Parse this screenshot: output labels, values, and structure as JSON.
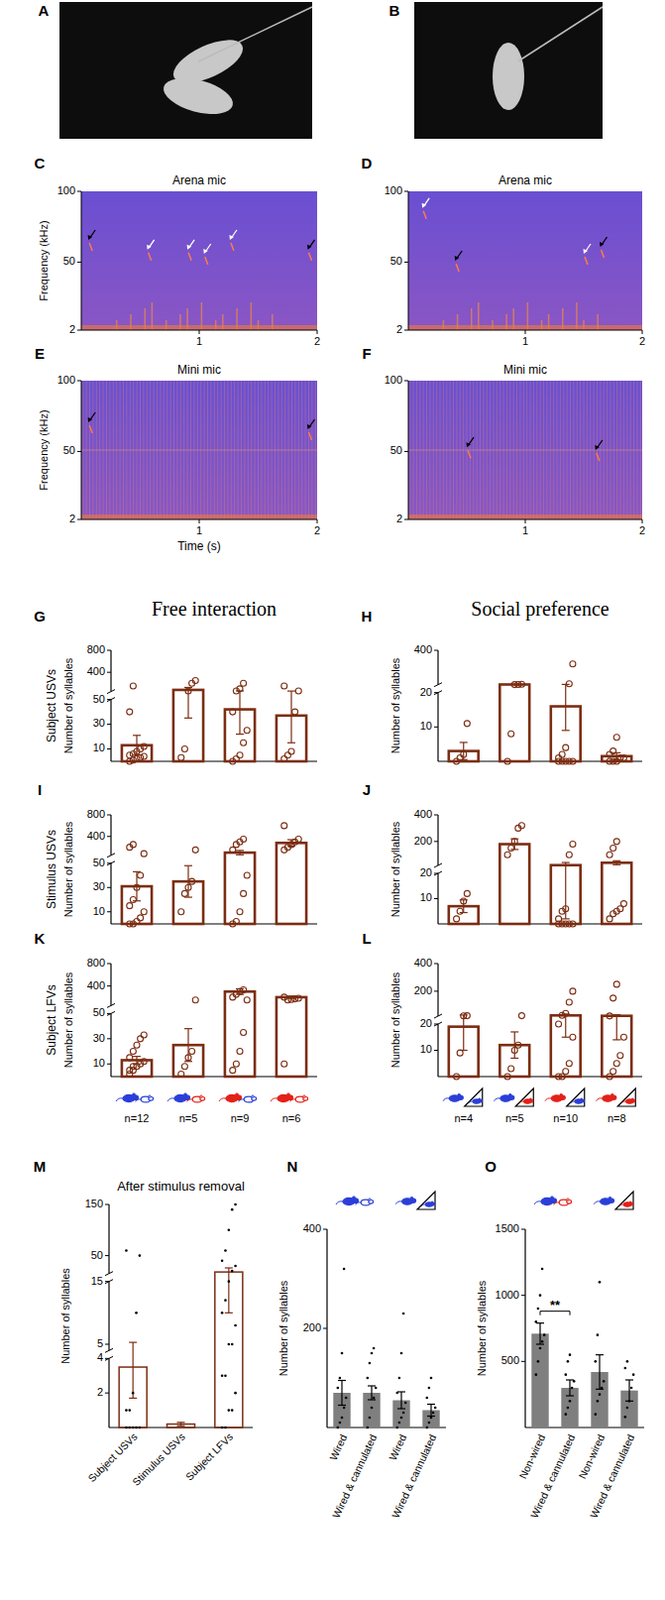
{
  "photos": [
    {
      "panel": "A"
    },
    {
      "panel": "B"
    }
  ],
  "chart_data": [
    {
      "panel": "C",
      "type": "spectrogram",
      "title": "Arena mic",
      "ylabel": "Frequency (kHz)",
      "xlim": [
        0,
        2
      ],
      "xticks": [
        1,
        2
      ],
      "ylim": [
        2,
        100
      ],
      "yticks": [
        2,
        50,
        100
      ]
    },
    {
      "panel": "D",
      "type": "spectrogram",
      "title": "Arena mic",
      "xlim": [
        0,
        2
      ],
      "xticks": [
        1,
        2
      ],
      "ylim": [
        2,
        100
      ],
      "yticks": [
        2,
        50,
        100
      ]
    },
    {
      "panel": "E",
      "type": "spectrogram",
      "title": "Mini mic",
      "ylabel": "Frequency (kHz)",
      "xlabel": "Time (s)",
      "xlim": [
        0,
        2
      ],
      "xticks": [
        1,
        2
      ],
      "ylim": [
        2,
        100
      ],
      "yticks": [
        2,
        50,
        100
      ]
    },
    {
      "panel": "F",
      "type": "spectrogram",
      "title": "Mini mic",
      "xlim": [
        0,
        2
      ],
      "xticks": [
        1,
        2
      ],
      "ylim": [
        2,
        100
      ],
      "yticks": [
        2,
        50,
        100
      ]
    },
    {
      "panel": "G",
      "type": "bar",
      "title": "Free interaction",
      "row_label": "Subject USVs",
      "ylabel": "Number of syllables",
      "color": "#7b2d12",
      "categories": [
        null,
        null,
        null,
        null
      ],
      "values": [
        13,
        80,
        42,
        37
      ],
      "errors": [
        8,
        45,
        20,
        22
      ],
      "points": [
        [
          0,
          1,
          2,
          3,
          4,
          5,
          6,
          8,
          10,
          12,
          40,
          150
        ],
        [
          3,
          10,
          60,
          200,
          250
        ],
        [
          0,
          2,
          5,
          15,
          25,
          40,
          60,
          100,
          200
        ],
        [
          2,
          5,
          8,
          40,
          60,
          150
        ]
      ],
      "ylim": [
        0,
        800
      ],
      "yticks": [
        [
          10,
          30,
          50
        ],
        [
          400,
          800
        ]
      ]
    },
    {
      "panel": "H",
      "type": "bar",
      "title": "Social preference",
      "ylabel": "Number of syllables",
      "color": "#7b2d12",
      "categories": [
        null,
        null,
        null,
        null
      ],
      "values": [
        3,
        22,
        16,
        1.5
      ],
      "errors": [
        2.5,
        1,
        7,
        1
      ],
      "points": [
        [
          0,
          1,
          2,
          11
        ],
        [
          0,
          8,
          21,
          22,
          24
        ],
        [
          0,
          0,
          0,
          0,
          0,
          1,
          2,
          4,
          30,
          250
        ],
        [
          0,
          0,
          0,
          1,
          1,
          2,
          3,
          7
        ]
      ],
      "ylim": [
        0,
        400
      ],
      "yticks": [
        [
          10,
          20
        ],
        [
          400
        ]
      ]
    },
    {
      "panel": "I",
      "type": "bar",
      "row_label": "Stimulus USVs",
      "ylabel": "Number of syllables",
      "color": "#7b2d12",
      "categories": [
        null,
        null,
        null,
        null
      ],
      "values": [
        31,
        35,
        100,
        280
      ],
      "errors": [
        12,
        13,
        40,
        60
      ],
      "points": [
        [
          0,
          0,
          2,
          5,
          10,
          15,
          20,
          30,
          40,
          80,
          200,
          250
        ],
        [
          10,
          25,
          30,
          35,
          150
        ],
        [
          0,
          2,
          10,
          25,
          40,
          150,
          250,
          300,
          350
        ],
        [
          150,
          200,
          250,
          300,
          350,
          600
        ]
      ],
      "ylim": [
        0,
        800
      ],
      "yticks": [
        [
          10,
          30,
          50
        ],
        [
          400,
          800
        ]
      ]
    },
    {
      "panel": "J",
      "type": "bar",
      "ylabel": "Number of syllables",
      "color": "#7b2d12",
      "categories": [
        null,
        null,
        null,
        null
      ],
      "values": [
        7,
        180,
        22,
        40
      ],
      "errors": [
        2.5,
        40,
        20,
        15
      ],
      "points": [
        [
          2,
          5,
          9,
          12
        ],
        [
          100,
          150,
          200,
          300,
          320
        ],
        [
          0,
          0,
          0,
          0,
          0,
          2,
          5,
          6,
          100,
          180
        ],
        [
          2,
          4,
          5,
          6,
          8,
          100,
          150,
          200
        ]
      ],
      "ylim": [
        0,
        400
      ],
      "yticks": [
        [
          10,
          20
        ],
        [
          200,
          400
        ]
      ]
    },
    {
      "panel": "K",
      "type": "bar",
      "row_label": "Subject LFVs",
      "ylabel": "Number of syllables",
      "color": "#7b2d12",
      "categories": [
        "n=12",
        "n=5",
        "n=9",
        "n=6"
      ],
      "values": [
        13,
        25,
        300,
        200
      ],
      "errors": [
        3,
        13,
        50,
        20
      ],
      "points": [
        [
          2,
          5,
          8,
          10,
          12,
          15,
          20,
          25,
          30,
          33,
          5,
          8
        ],
        [
          2,
          8,
          15,
          20,
          150
        ],
        [
          5,
          10,
          20,
          35,
          150,
          200,
          250,
          300,
          330
        ],
        [
          10,
          150,
          160,
          170,
          180,
          200
        ]
      ],
      "ylim": [
        0,
        800
      ],
      "yticks": [
        [
          10,
          30,
          50
        ],
        [
          400,
          800
        ]
      ]
    },
    {
      "panel": "L",
      "type": "bar",
      "ylabel": "Number of syllables",
      "color": "#7b2d12",
      "categories": [
        "n=4",
        "n=5",
        "n=10",
        "n=8"
      ],
      "values": [
        19,
        12,
        25,
        22
      ],
      "errors": [
        9,
        5,
        10,
        8
      ],
      "points": [
        [
          0,
          9,
          22,
          23
        ],
        [
          0,
          3,
          10,
          12,
          23
        ],
        [
          0,
          0,
          2,
          5,
          15,
          20,
          25,
          40,
          120,
          200
        ],
        [
          0,
          2,
          5,
          8,
          15,
          21,
          150,
          250
        ]
      ],
      "ylim": [
        0,
        400
      ],
      "yticks": [
        [
          10,
          20
        ],
        [
          200,
          400
        ]
      ]
    },
    {
      "panel": "M",
      "type": "bar",
      "title": "After stimulus removal",
      "ylabel": "Number of syllables",
      "color": "#7b2d12",
      "categories": [
        "Subject USVs",
        "Stimulus USVs",
        "Subject LFVs"
      ],
      "values": [
        3.5,
        0.2,
        18
      ],
      "errors": [
        1.8,
        0.1,
        8
      ],
      "points": [
        [
          0,
          0,
          0,
          0,
          0,
          1,
          1,
          2,
          10,
          50,
          60
        ],
        [],
        [
          0,
          0,
          1,
          1,
          2,
          3,
          3,
          5,
          5,
          8,
          10,
          12,
          15,
          20,
          30,
          40,
          60,
          100,
          140,
          150
        ]
      ],
      "ylim": [
        0,
        150
      ],
      "yticks": [
        [
          2,
          4
        ],
        [
          5,
          15
        ],
        [
          50,
          150
        ]
      ]
    },
    {
      "panel": "N",
      "type": "bar",
      "ylabel": "Number of syllables",
      "color": "#7f7f7f",
      "categories": [
        "Wired",
        "Wired & cannulated",
        "Wired",
        "Wired & cannulated"
      ],
      "values": [
        70,
        70,
        55,
        35
      ],
      "errors": [
        25,
        14,
        17,
        12
      ],
      "points": [
        [
          0,
          10,
          20,
          40,
          60,
          80,
          100,
          150,
          320
        ],
        [
          0,
          20,
          40,
          60,
          80,
          100,
          130,
          150,
          160
        ],
        [
          0,
          10,
          20,
          30,
          50,
          70,
          100,
          150,
          230
        ],
        [
          0,
          10,
          20,
          30,
          40,
          60,
          80,
          100
        ]
      ],
      "ylim": [
        0,
        400
      ],
      "yticks": [
        200,
        400
      ]
    },
    {
      "panel": "O",
      "type": "bar",
      "ylabel": "Number of syllables",
      "color": "#7f7f7f",
      "categories": [
        "Non-wired",
        "Wired & cannulated",
        "Non-wired",
        "Wired & cannulated"
      ],
      "values": [
        710,
        300,
        420,
        280
      ],
      "errors": [
        80,
        60,
        130,
        80
      ],
      "points": [
        [
          400,
          500,
          600,
          650,
          700,
          800,
          900,
          1000,
          1200
        ],
        [
          100,
          150,
          200,
          300,
          350,
          400,
          500,
          550
        ],
        [
          100,
          200,
          250,
          300,
          350,
          500,
          700,
          1100
        ],
        [
          80,
          150,
          200,
          300,
          400,
          450,
          500
        ]
      ],
      "ylim": [
        0,
        1500
      ],
      "yticks": [
        500,
        1000,
        1500
      ],
      "annotations": [
        {
          "text": "**",
          "from": 0,
          "to": 1
        }
      ]
    }
  ]
}
